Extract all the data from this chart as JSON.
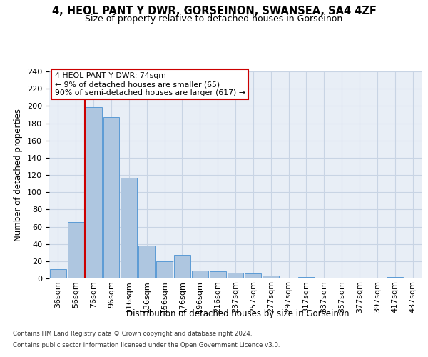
{
  "title1": "4, HEOL PANT Y DWR, GORSEINON, SWANSEA, SA4 4ZF",
  "title2": "Size of property relative to detached houses in Gorseinon",
  "xlabel": "Distribution of detached houses by size in Gorseinon",
  "ylabel": "Number of detached properties",
  "categories": [
    "36sqm",
    "56sqm",
    "76sqm",
    "96sqm",
    "116sqm",
    "136sqm",
    "156sqm",
    "176sqm",
    "196sqm",
    "216sqm",
    "237sqm",
    "257sqm",
    "277sqm",
    "297sqm",
    "317sqm",
    "337sqm",
    "357sqm",
    "377sqm",
    "397sqm",
    "417sqm",
    "437sqm"
  ],
  "values": [
    11,
    65,
    199,
    187,
    117,
    38,
    20,
    27,
    9,
    8,
    7,
    6,
    3,
    0,
    2,
    0,
    0,
    0,
    0,
    2,
    0
  ],
  "bar_color": "#aec6e0",
  "bar_edge_color": "#5b9bd5",
  "grid_color": "#c8d4e4",
  "background_color": "#e8eef6",
  "vline_color": "#cc0000",
  "vline_pos": 1.5,
  "annotation_text": "4 HEOL PANT Y DWR: 74sqm\n← 9% of detached houses are smaller (65)\n90% of semi-detached houses are larger (617) →",
  "annotation_box_color": "#ffffff",
  "annotation_box_edge": "#cc0000",
  "footer1": "Contains HM Land Registry data © Crown copyright and database right 2024.",
  "footer2": "Contains public sector information licensed under the Open Government Licence v3.0.",
  "ylim": [
    0,
    240
  ],
  "yticks": [
    0,
    20,
    40,
    60,
    80,
    100,
    120,
    140,
    160,
    180,
    200,
    220,
    240
  ],
  "title1_fontsize": 10.5,
  "title2_fontsize": 9,
  "ylabel_fontsize": 8.5,
  "xlabel_fontsize": 8.5,
  "tick_fontsize": 8,
  "annotation_fontsize": 7.8
}
